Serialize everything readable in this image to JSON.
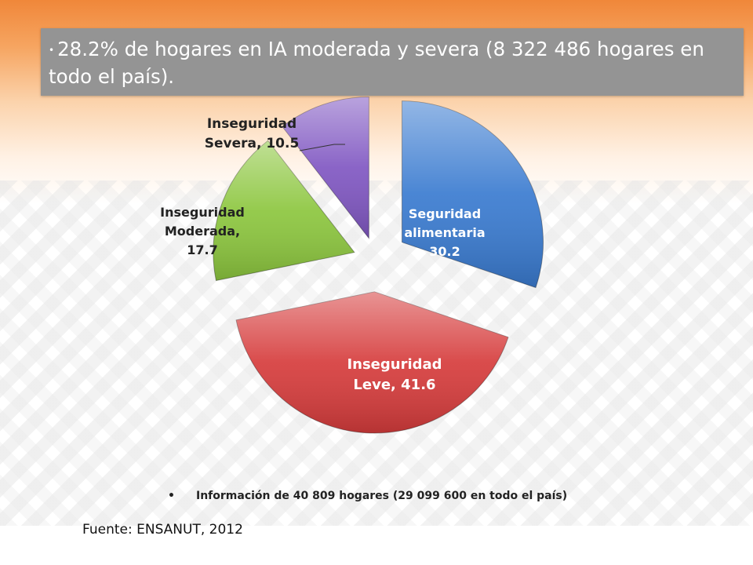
{
  "header": {
    "bullet_text": "28.2% de hogares en IA  moderada y severa (8 322 486  hogares en todo el país)."
  },
  "chart_data": {
    "type": "pie",
    "exploded": true,
    "slices": [
      {
        "label": "Seguridad alimentaria",
        "value": 30.2,
        "color": "#3a7bd0",
        "label_position": "inside"
      },
      {
        "label": "Inseguridad Leve",
        "value": 41.6,
        "color": "#d63c3c",
        "label_position": "inside"
      },
      {
        "label": "Inseguridad Moderada",
        "value": 17.7,
        "color": "#8cc63e",
        "label_position": "outside"
      },
      {
        "label": "Inseguridad Severa",
        "value": 10.5,
        "color": "#8057c2",
        "label_position": "outside"
      }
    ],
    "slice_label_lines": [
      [
        "Seguridad",
        "alimentaria",
        "30.2"
      ],
      [
        "Inseguridad",
        "Leve, 41.6"
      ],
      [
        "Inseguridad",
        "Moderada,",
        "17.7"
      ],
      [
        "Inseguridad",
        "Severa, 10.5"
      ]
    ]
  },
  "footer": {
    "note": "Información de 40 809 hogares (29 099 600 en todo el país)",
    "source": "Fuente: ENSANUT, 2012"
  }
}
